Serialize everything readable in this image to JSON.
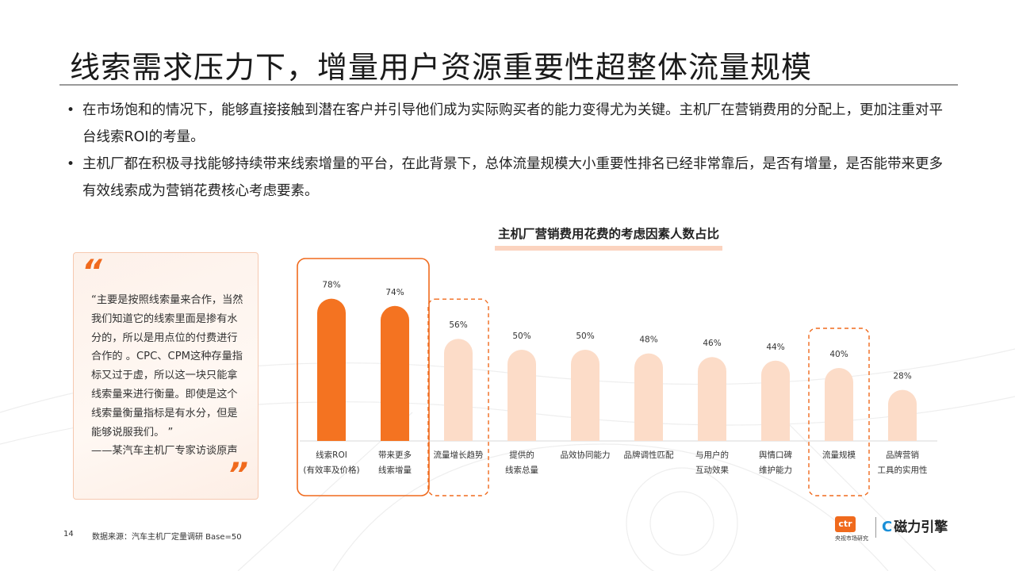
{
  "page": {
    "title": "线索需求压力下，增量用户资源重要性超整体流量规模",
    "bullets": [
      "在市场饱和的情况下，能够直接接触到潜在客户并引导他们成为实际购买者的能力变得尤为关键。主机厂在营销费用的分配上，更加注重对平台线索ROI的考量。",
      "主机厂都在积极寻找能够持续带来线索增量的平台，在此背景下，总体流量规模大小重要性排名已经非常靠后，是否有增量，是否能带来更多有效线索成为营销花费核心考虑要素。"
    ],
    "bullet_symbol": "•"
  },
  "quote": {
    "open_mark": "“",
    "close_mark": "”",
    "text": "“主要是按照线索量来合作，当然我们知道它的线索里面是掺有水分的，所以是用点位的付费进行合作的 。CPC、CPM这种存量指标又过于虚，所以这一块只能拿线索量来进行衡量。即使是这个线索量衡量指标是有水分，但是能够说服我们。 ”",
    "source": "——某汽车主机厂专家访谈原声"
  },
  "footer": {
    "page_number": "14",
    "source": "数据来源：汽车主机厂定量调研 Base=50"
  },
  "logos": {
    "ctr_mark": "ctr",
    "ctr_sub": "央视市场研究",
    "cili_icon": "C",
    "cili_name": "磁力引擎"
  },
  "chart_data": {
    "type": "bar",
    "title": "主机厂营销费用花费的考虑因素人数占比",
    "categories": [
      [
        "线索ROI",
        "(有效率及价格)"
      ],
      [
        "带来更多",
        "线索增量"
      ],
      [
        "流量增长趋势"
      ],
      [
        "提供的",
        "线索总量"
      ],
      [
        "品效协同能力"
      ],
      [
        "品牌调性匹配"
      ],
      [
        "与用户的",
        "互动效果"
      ],
      [
        "舆情口碑",
        "维护能力"
      ],
      [
        "流量规模"
      ],
      [
        "品牌营销",
        "工具的实用性"
      ]
    ],
    "values": [
      78,
      74,
      56,
      50,
      50,
      48,
      46,
      44,
      40,
      28
    ],
    "value_labels": [
      "78%",
      "74%",
      "56%",
      "50%",
      "50%",
      "48%",
      "46%",
      "44%",
      "40%",
      "28%"
    ],
    "ylim": [
      0,
      100
    ],
    "highlighted": [
      0,
      1
    ],
    "dashed_highlight": [
      2,
      8
    ],
    "colors": {
      "highlight": "#f47321",
      "normal": "#fcdcc8",
      "outline": "#f06a1d",
      "axis": "#d9d9d9"
    },
    "grid": false,
    "legend": "none"
  }
}
